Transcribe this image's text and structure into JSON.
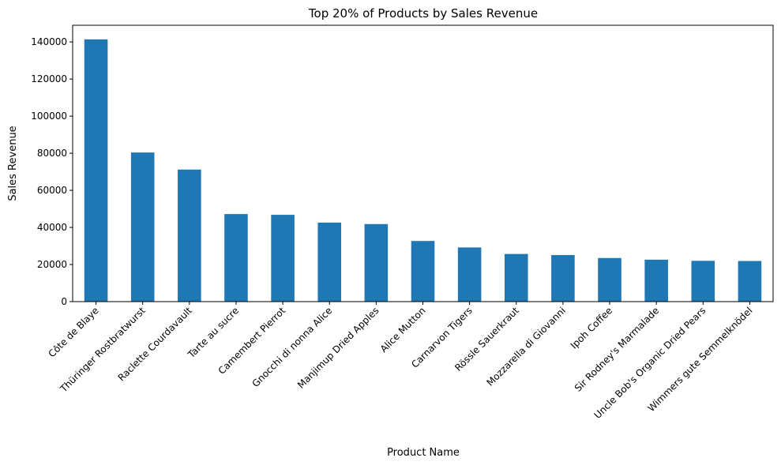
{
  "chart_data": {
    "type": "bar",
    "title": "Top 20% of Products by Sales Revenue",
    "xlabel": "Product Name",
    "ylabel": "Sales Revenue",
    "categories": [
      "Côte de Blaye",
      "Thüringer Rostbratwurst",
      "Raclette Courdavault",
      "Tarte au sucre",
      "Camembert Pierrot",
      "Gnocchi di nonna Alice",
      "Manjimup Dried Apples",
      "Alice Mutton",
      "Carnarvon Tigers",
      "Rössle Sauerkraut",
      "Mozzarella di Giovanni",
      "Ipoh Coffee",
      "Sir Rodney's Marmalade",
      "Uncle Bob's Organic Dried Pears",
      "Wimmers gute Semmelknödel"
    ],
    "values": [
      141400,
      80400,
      71200,
      47200,
      46800,
      42600,
      41800,
      32700,
      29200,
      25700,
      25100,
      23500,
      22600,
      22000,
      21900
    ],
    "ylim": [
      0,
      149000
    ],
    "yticks": [
      0,
      20000,
      40000,
      60000,
      80000,
      100000,
      120000,
      140000
    ],
    "ytick_labels": [
      "0",
      "20000",
      "40000",
      "60000",
      "80000",
      "100000",
      "120000",
      "140000"
    ],
    "bar_color": "#1f77b4",
    "grid": false,
    "legend": "none"
  }
}
